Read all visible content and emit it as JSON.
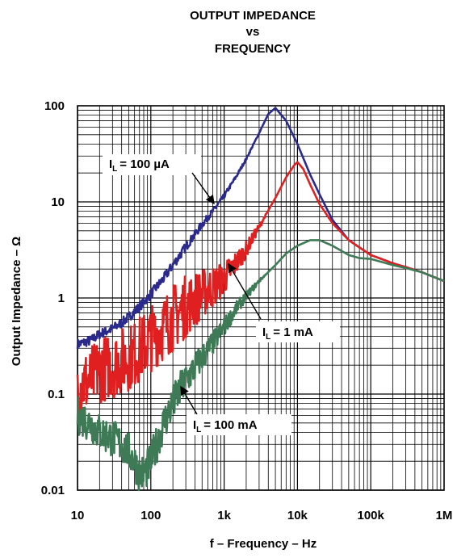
{
  "chart_data": {
    "type": "line",
    "title": [
      "OUTPUT IMPEDANCE",
      "vs",
      "FREQUENCY"
    ],
    "xlabel": "f – Frequency – Hz",
    "ylabel": "Output Impedance – Ω",
    "x_scale": "log",
    "y_scale": "log",
    "xlim": [
      10,
      1000000
    ],
    "ylim": [
      0.01,
      100
    ],
    "grid": true,
    "x_ticks": [
      {
        "value": 10,
        "label": "10"
      },
      {
        "value": 100,
        "label": "100"
      },
      {
        "value": 1000,
        "label": "1k"
      },
      {
        "value": 10000,
        "label": "10k"
      },
      {
        "value": 100000,
        "label": "100k"
      },
      {
        "value": 1000000,
        "label": "1M"
      }
    ],
    "y_ticks": [
      {
        "value": 0.01,
        "label": "0.01"
      },
      {
        "value": 0.1,
        "label": "0.1"
      },
      {
        "value": 1,
        "label": "1"
      },
      {
        "value": 10,
        "label": "10"
      },
      {
        "value": 100,
        "label": "100"
      }
    ],
    "series": [
      {
        "label_text": "= 100 µA",
        "label_sub": "L",
        "color": "#2a2a8c",
        "noise": 0.05,
        "x": [
          10,
          15,
          20,
          30,
          40,
          60,
          80,
          100,
          150,
          200,
          300,
          500,
          700,
          1000,
          1500,
          2000,
          3000,
          4000,
          5000,
          7000,
          10000,
          15000,
          20000,
          30000,
          50000,
          100000,
          200000,
          300000,
          500000,
          1000000
        ],
        "y": [
          0.33,
          0.36,
          0.42,
          0.48,
          0.55,
          0.72,
          0.9,
          1.1,
          1.6,
          2.2,
          3.4,
          5.8,
          8.0,
          11.5,
          19.0,
          28.0,
          52.0,
          82.0,
          95.0,
          70.0,
          40.0,
          19.0,
          12.0,
          6.5,
          4.0,
          2.8,
          2.3,
          2.1,
          1.85,
          1.5
        ]
      },
      {
        "label_text": "= 1 mA",
        "label_sub": "L",
        "color": "#e02020",
        "noise": 0.35,
        "x": [
          10,
          15,
          20,
          30,
          40,
          60,
          80,
          100,
          150,
          200,
          300,
          500,
          700,
          1000,
          1500,
          2000,
          3000,
          5000,
          7000,
          9000,
          10000,
          12000,
          15000,
          20000,
          30000,
          50000,
          100000,
          200000,
          300000,
          500000,
          1000000
        ],
        "y": [
          0.12,
          0.14,
          0.18,
          0.2,
          0.22,
          0.26,
          0.32,
          0.38,
          0.5,
          0.62,
          0.82,
          1.1,
          1.3,
          1.6,
          2.4,
          3.2,
          5.5,
          11.0,
          18.0,
          24.0,
          26.0,
          22.0,
          15.0,
          9.5,
          6.0,
          4.0,
          2.8,
          2.3,
          2.1,
          1.85,
          1.5
        ]
      },
      {
        "label_text": "= 100 mA",
        "label_sub": "L",
        "color": "#3d7a55",
        "noise": 0.2,
        "x": [
          10,
          15,
          20,
          30,
          40,
          50,
          60,
          70,
          80,
          90,
          100,
          120,
          150,
          200,
          300,
          500,
          700,
          1000,
          1500,
          2000,
          3000,
          5000,
          7000,
          10000,
          15000,
          20000,
          30000,
          50000,
          70000,
          100000,
          200000,
          300000,
          500000,
          1000000
        ],
        "y": [
          0.06,
          0.05,
          0.04,
          0.035,
          0.03,
          0.025,
          0.02,
          0.015,
          0.015,
          0.017,
          0.02,
          0.03,
          0.05,
          0.08,
          0.14,
          0.24,
          0.34,
          0.5,
          0.8,
          1.05,
          1.5,
          2.2,
          2.9,
          3.5,
          4.0,
          4.0,
          3.5,
          2.8,
          2.6,
          2.55,
          2.2,
          2.05,
          1.85,
          1.5
        ]
      }
    ],
    "annotations": [
      {
        "prefix": "I",
        "sub": "L",
        "text": "= 100 µA"
      },
      {
        "prefix": "I",
        "sub": "L",
        "text": "= 1 mA"
      },
      {
        "prefix": "I",
        "sub": "L",
        "text": "= 100 mA"
      }
    ]
  }
}
